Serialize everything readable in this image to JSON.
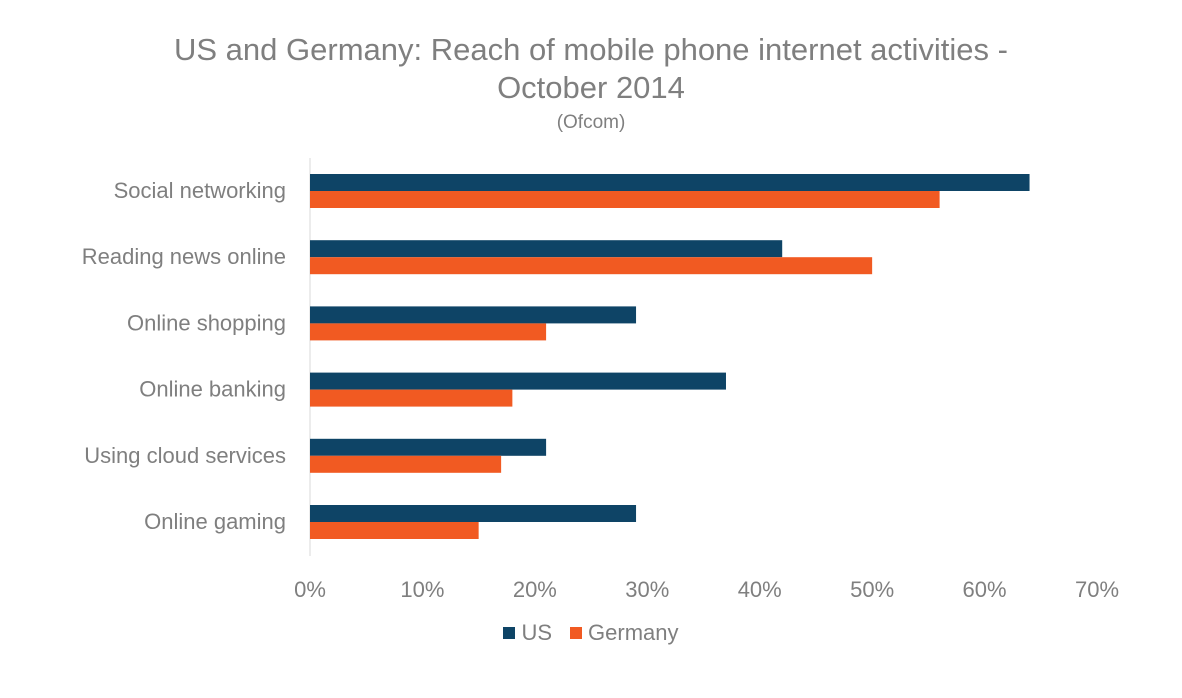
{
  "chart_data": {
    "type": "bar",
    "orientation": "horizontal",
    "title_line1": "US and Germany: Reach of mobile phone internet activities -",
    "title_line2": "October 2014",
    "subtitle": "(Ofcom)",
    "categories": [
      "Social networking",
      "Reading news online",
      "Online shopping",
      "Online banking",
      "Using cloud services",
      "Online gaming"
    ],
    "series": [
      {
        "name": "US",
        "color": "#0e4466",
        "values": [
          64,
          42,
          29,
          37,
          21,
          29
        ]
      },
      {
        "name": "Germany",
        "color": "#f15a22",
        "values": [
          56,
          50,
          21,
          18,
          17,
          15
        ]
      }
    ],
    "xlim": [
      0,
      70
    ],
    "xticks": [
      0,
      10,
      20,
      30,
      40,
      50,
      60,
      70
    ],
    "tick_labels": [
      "0%",
      "10%",
      "20%",
      "30%",
      "40%",
      "50%",
      "60%",
      "70%"
    ],
    "grid": false,
    "legend_position": "bottom"
  }
}
